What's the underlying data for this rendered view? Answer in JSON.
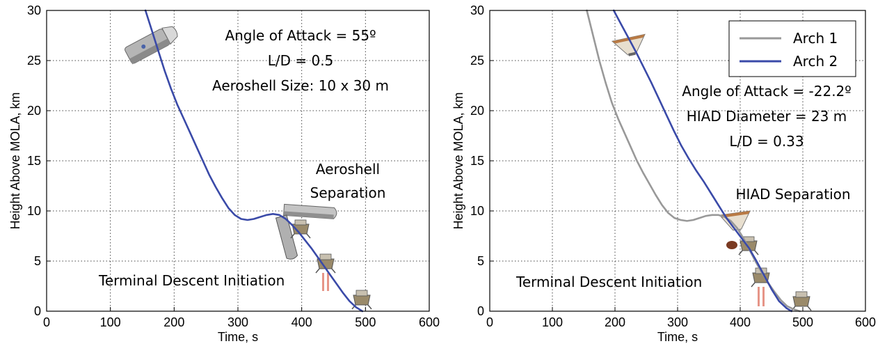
{
  "chart_data": [
    {
      "type": "line",
      "xlabel": "Time, s",
      "ylabel": "Height Above MOLA, km",
      "xlim": [
        0,
        600
      ],
      "ylim": [
        0,
        30
      ],
      "xticks": [
        "0",
        "100",
        "200",
        "300",
        "400",
        "500",
        "600"
      ],
      "yticks": [
        "0",
        "5",
        "10",
        "15",
        "20",
        "25",
        "30"
      ],
      "grid": true,
      "series": [
        {
          "color": "#3a4aa8",
          "x": [
            155,
            165,
            175,
            185,
            195,
            205,
            215,
            225,
            235,
            245,
            255,
            265,
            275,
            285,
            295,
            305,
            315,
            325,
            335,
            345,
            355,
            365,
            375,
            385,
            395,
            405,
            415,
            425,
            435,
            445,
            455,
            465,
            475,
            485,
            495
          ],
          "y": [
            30.0,
            28.0,
            26.0,
            24.0,
            22.2,
            20.6,
            19.2,
            17.8,
            16.4,
            15.0,
            13.6,
            12.4,
            11.3,
            10.3,
            9.6,
            9.2,
            9.1,
            9.2,
            9.4,
            9.6,
            9.7,
            9.6,
            9.2,
            8.6,
            7.9,
            7.1,
            6.3,
            5.4,
            4.5,
            3.6,
            2.7,
            1.8,
            1.0,
            0.4,
            0.0
          ]
        }
      ],
      "annotations": [
        "Angle of Attack = 55º",
        "L/D = 0.5",
        "Aeroshell Size: 10 x 30 m",
        "Aeroshell",
        "Separation",
        "Terminal Descent Initiation"
      ]
    },
    {
      "type": "line",
      "xlabel": "Time, s",
      "ylabel": "Height Above MOLA, km",
      "xlim": [
        0,
        600
      ],
      "ylim": [
        0,
        30
      ],
      "xticks": [
        "0",
        "100",
        "200",
        "300",
        "400",
        "500",
        "600"
      ],
      "yticks": [
        "0",
        "5",
        "10",
        "15",
        "20",
        "25",
        "30"
      ],
      "grid": true,
      "legend": "top-right",
      "series": [
        {
          "name": "Arch 1",
          "color": "#999999",
          "x": [
            155,
            165,
            175,
            185,
            195,
            205,
            215,
            225,
            235,
            245,
            255,
            265,
            275,
            285,
            295,
            305,
            315,
            325,
            335,
            345,
            355,
            365,
            375,
            385,
            395,
            405,
            415,
            425,
            435,
            445,
            455,
            465,
            475,
            485,
            495
          ],
          "y": [
            30.0,
            27.5,
            25.0,
            22.8,
            20.8,
            19.2,
            17.8,
            16.4,
            15.0,
            13.8,
            12.7,
            11.6,
            10.6,
            9.8,
            9.3,
            9.1,
            9.0,
            9.1,
            9.3,
            9.5,
            9.6,
            9.6,
            9.4,
            9.0,
            8.3,
            7.3,
            6.1,
            4.9,
            3.8,
            2.8,
            1.9,
            1.1,
            0.5,
            0.2,
            0.0
          ]
        },
        {
          "name": "Arch 2",
          "color": "#3a4aa8",
          "x": [
            198,
            210,
            222,
            234,
            246,
            258,
            270,
            282,
            294,
            306,
            318,
            330,
            342,
            354,
            366,
            378,
            390,
            402,
            414,
            426,
            438,
            450,
            462,
            474,
            482
          ],
          "y": [
            30.0,
            28.6,
            27.2,
            25.8,
            24.3,
            22.8,
            21.2,
            19.6,
            18.0,
            16.5,
            15.2,
            14.0,
            12.9,
            11.7,
            10.5,
            9.3,
            8.3,
            7.3,
            6.3,
            5.0,
            3.6,
            2.2,
            1.0,
            0.3,
            0.0
          ]
        }
      ],
      "annotations": [
        "Angle of Attack = -22.2º",
        "HIAD Diameter = 23 m",
        "L/D = 0.33",
        "HIAD Separation",
        "Terminal Descent Initiation"
      ]
    }
  ]
}
